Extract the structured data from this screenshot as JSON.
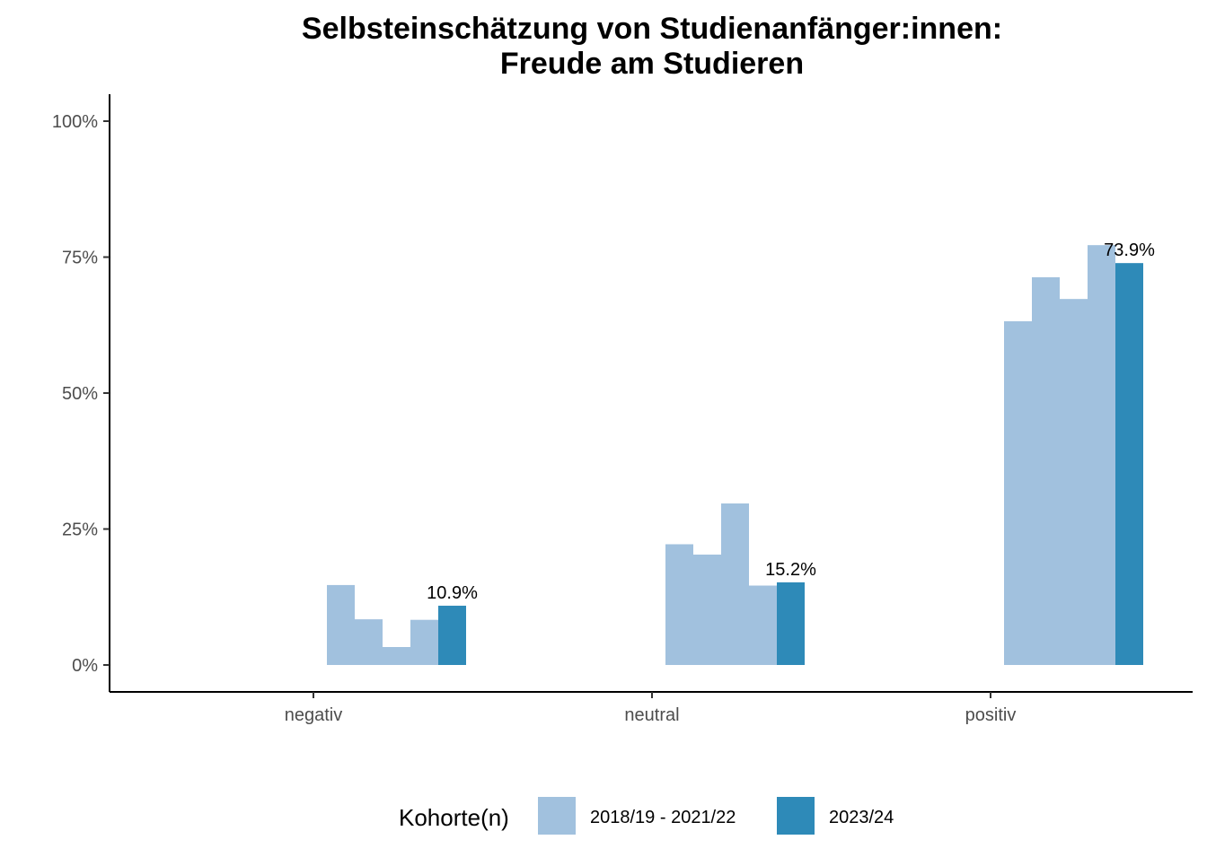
{
  "chart_data": {
    "type": "bar",
    "title": "Selbsteinschätzung von Studienanfänger:innen:",
    "subtitle": "Freude am Studieren",
    "categories": [
      "negativ",
      "neutral",
      "positiv"
    ],
    "ylim": [
      0,
      1
    ],
    "yticks": [
      0,
      0.25,
      0.5,
      0.75,
      1.0
    ],
    "ytick_labels": [
      "0%",
      "25%",
      "50%",
      "75%",
      "100%"
    ],
    "grid": false,
    "legend": {
      "title": "Kohorte(n)",
      "placement": "bottom",
      "entries": [
        {
          "label": "2018/19 - 2021/22",
          "color": "#a1c1de"
        },
        {
          "label": "2023/24",
          "color": "#2e8ab8"
        }
      ]
    },
    "series": [
      {
        "name": "2018/19 - 2021/22",
        "color": "#a1c1de",
        "sub_series": 4,
        "values": [
          [
            0.147,
            0.084,
            0.033,
            0.083
          ],
          [
            0.222,
            0.203,
            0.297,
            0.146
          ],
          [
            0.632,
            0.713,
            0.673,
            0.772
          ]
        ]
      },
      {
        "name": "2023/24",
        "color": "#2e8ab8",
        "values": [
          0.109,
          0.152,
          0.739
        ],
        "labels": [
          "10.9%",
          "15.2%",
          "73.9%"
        ]
      }
    ]
  }
}
